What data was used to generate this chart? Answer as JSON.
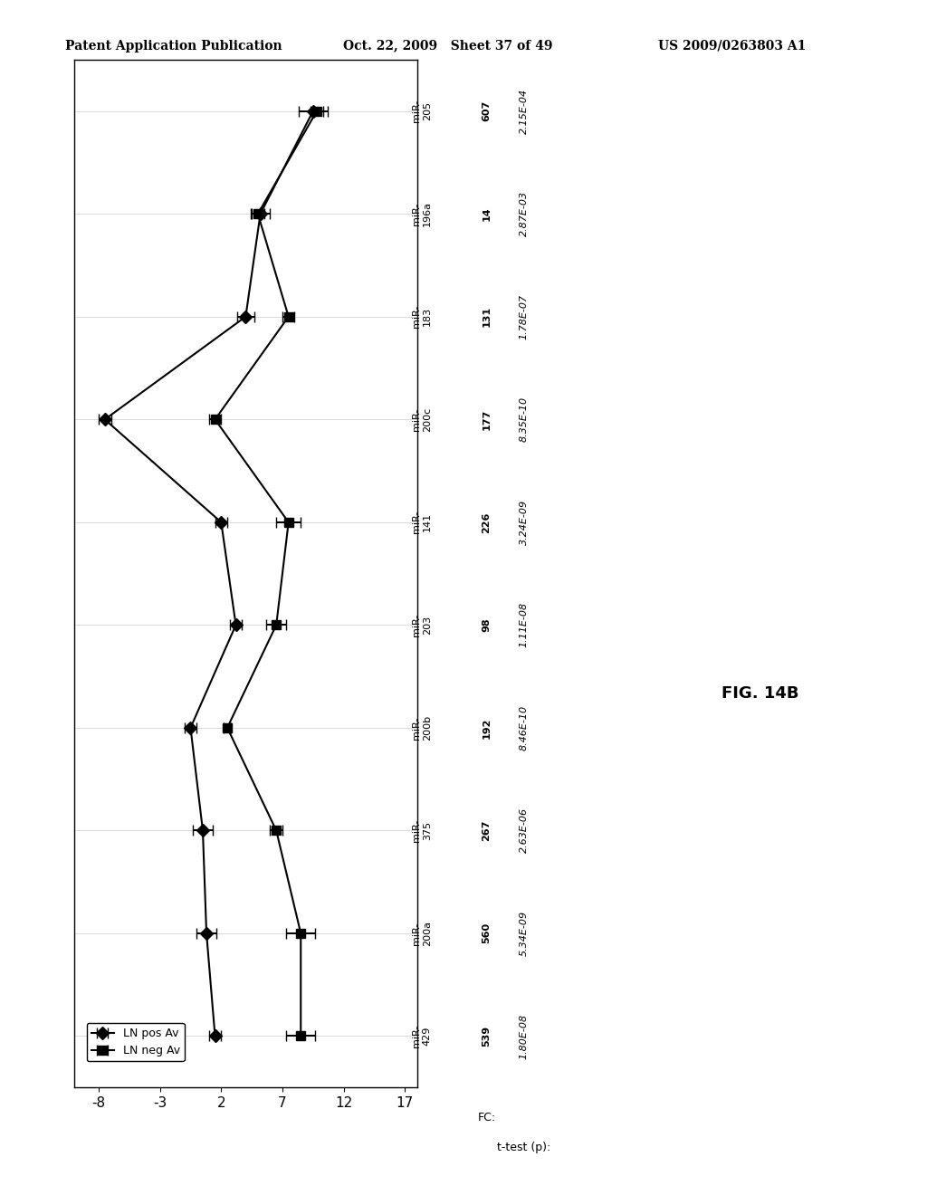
{
  "mirnas": [
    "miR-\n205",
    "miR-\n196a",
    "miR-\n183",
    "miR-\n200c",
    "miR-\n141",
    "miR-\n203",
    "miR-\n200b",
    "miR-\n375",
    "miR-\n200a",
    "miR-\n429"
  ],
  "mirna_labels": [
    "miR-\n205",
    "miR-\n196a",
    "miR-\n183",
    "miR-\n200c",
    "miR-\n141",
    "miR-\n203",
    "miR-\n200b",
    "miR-\n375",
    "miR-\n200a",
    "miR-\n429"
  ],
  "fc": [
    "607",
    "14",
    "131",
    "177",
    "226",
    "98",
    "192",
    "267",
    "560",
    "539"
  ],
  "ttest": [
    "2.15E-04",
    "2.87E-03",
    "1.78E-07",
    "8.35E-10",
    "3.24E-09",
    "1.11E-08",
    "8.46E-10",
    "2.63E-06",
    "5.34E-09",
    "1.80E-08"
  ],
  "ln_pos_av": [
    9.5,
    5.2,
    4.0,
    -7.5,
    2.0,
    3.2,
    -0.5,
    0.5,
    0.8,
    1.5
  ],
  "ln_pos_xerr": [
    1.2,
    0.8,
    0.7,
    0.5,
    0.5,
    0.5,
    0.5,
    0.8,
    0.8,
    0.5
  ],
  "ln_neg_av": [
    9.8,
    5.0,
    7.5,
    1.5,
    7.5,
    6.5,
    2.5,
    6.5,
    8.5,
    8.5
  ],
  "ln_neg_xerr": [
    0.5,
    0.5,
    0.5,
    0.5,
    1.0,
    0.8,
    0.3,
    0.5,
    1.2,
    1.2
  ],
  "xlim": [
    -10,
    18
  ],
  "xticks": [
    -8,
    -3,
    2,
    7,
    12,
    17
  ],
  "fig_label": "FIG. 14B",
  "legend_pos_label": "LN pos Av",
  "legend_neg_label": "LN neg Av",
  "header_patent": "Patent Application Publication",
  "header_date": "Oct. 22, 2009   Sheet 37 of 49",
  "header_ref": "US 2009/0263803 A1"
}
